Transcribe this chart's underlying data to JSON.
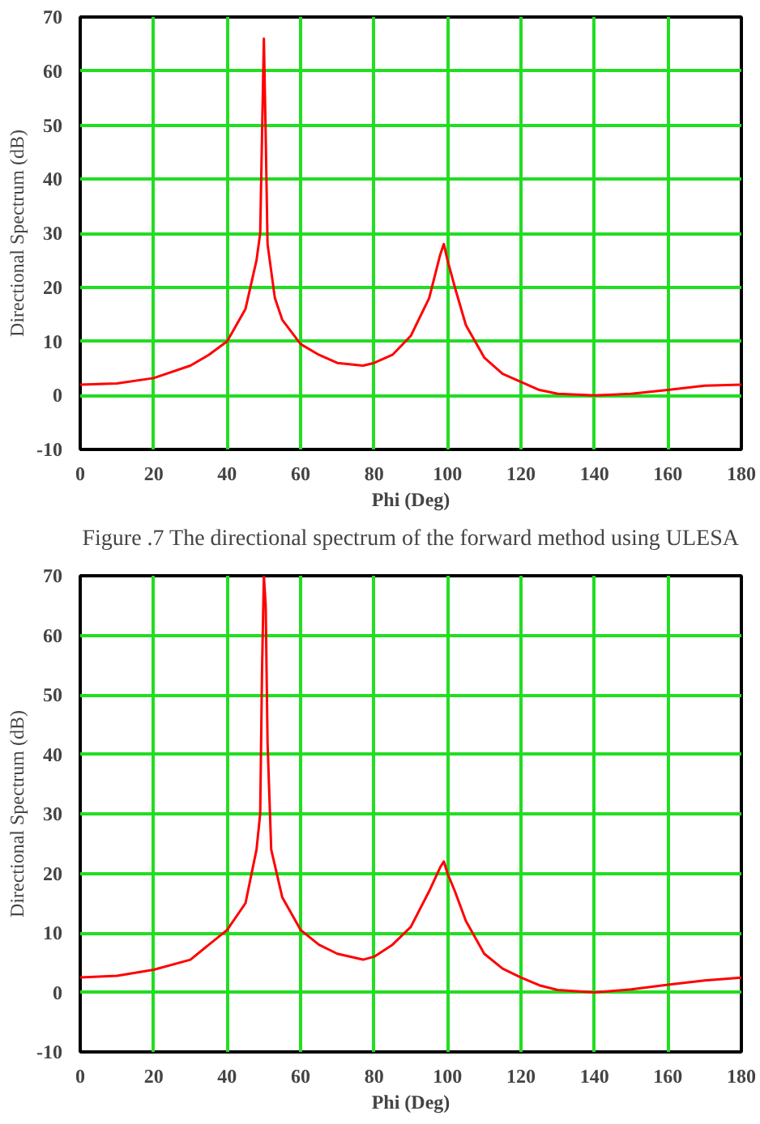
{
  "chart_data": [
    {
      "type": "line",
      "xlabel": "Phi (Deg)",
      "ylabel": "Directional Spectrum (dB)",
      "annotations": [
        "Figure .7 The directional spectrum of the forward method using ULESA"
      ],
      "xlim": [
        0,
        180
      ],
      "ylim": [
        -10,
        70
      ],
      "xticks": [
        0,
        20,
        40,
        60,
        80,
        100,
        120,
        140,
        160,
        180
      ],
      "yticks": [
        -10,
        0,
        10,
        20,
        30,
        40,
        50,
        60,
        70
      ],
      "grid": true,
      "series": [
        {
          "color": "#ff0000",
          "x": [
            0,
            10,
            20,
            30,
            35,
            40,
            45,
            48,
            49,
            49.5,
            50,
            50.5,
            51,
            53,
            55,
            60,
            65,
            70,
            77,
            80,
            85,
            90,
            95,
            98,
            99,
            100,
            102,
            105,
            110,
            115,
            120,
            125,
            130,
            140,
            150,
            160,
            170,
            180
          ],
          "values": [
            2,
            2.2,
            3.2,
            5.5,
            7.5,
            10,
            16,
            25,
            30,
            48,
            66,
            48,
            28,
            18,
            14,
            9.5,
            7.5,
            6,
            5.5,
            6,
            7.5,
            11,
            18,
            26,
            28,
            25,
            20,
            13,
            7,
            4,
            2.5,
            1,
            0.3,
            0,
            0.3,
            1,
            1.8,
            2
          ]
        }
      ]
    },
    {
      "type": "line",
      "xlabel": "Phi (Deg)",
      "ylabel": "Directional Spectrum (dB)",
      "xlim": [
        0,
        180
      ],
      "ylim": [
        -10,
        70
      ],
      "xticks": [
        0,
        20,
        40,
        60,
        80,
        100,
        120,
        140,
        160,
        180
      ],
      "yticks": [
        -10,
        0,
        10,
        20,
        30,
        40,
        50,
        60,
        70
      ],
      "grid": true,
      "series": [
        {
          "color": "#ff0000",
          "x": [
            0,
            10,
            20,
            30,
            40,
            45,
            48,
            49,
            49.5,
            50,
            50.5,
            51,
            52,
            55,
            60,
            65,
            70,
            77,
            80,
            85,
            90,
            95,
            98,
            99,
            100,
            102,
            105,
            110,
            115,
            120,
            125,
            130,
            140,
            150,
            160,
            170,
            180
          ],
          "values": [
            2.5,
            2.8,
            3.8,
            5.5,
            10.5,
            15,
            24,
            30,
            54,
            70,
            65,
            42,
            24,
            16,
            10.5,
            8,
            6.5,
            5.5,
            6,
            8,
            11,
            17,
            21,
            22,
            20,
            17,
            12,
            6.5,
            4,
            2.5,
            1.2,
            0.4,
            0,
            0.5,
            1.3,
            2,
            2.5
          ]
        }
      ]
    }
  ]
}
